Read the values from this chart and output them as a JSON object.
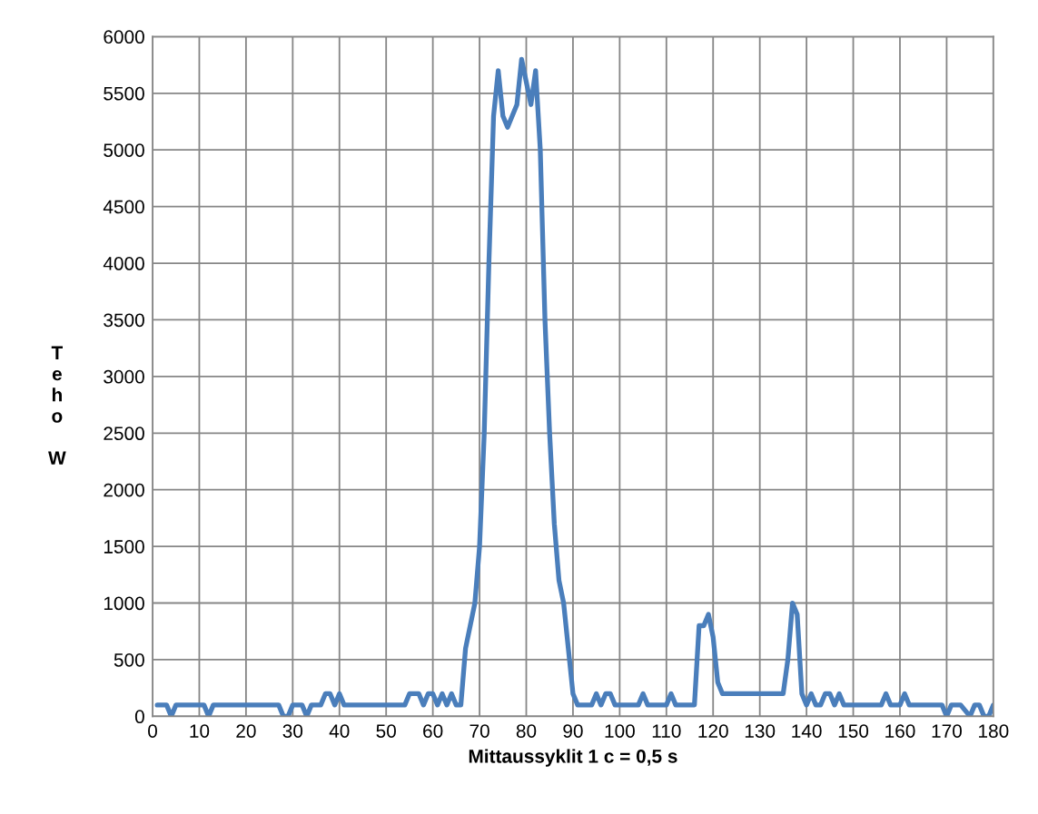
{
  "chart_data": {
    "type": "line",
    "xlabel": "Mittaussyklit 1 c = 0,5 s",
    "ylabel": "Teho W",
    "series": [
      {
        "color": "#4a7ebb",
        "x": [
          1,
          2,
          3,
          4,
          5,
          6,
          11,
          12,
          13,
          14,
          27,
          28,
          29,
          30,
          31,
          32,
          33,
          34,
          35,
          36,
          37,
          38,
          39,
          40,
          41,
          42,
          54,
          55,
          56,
          57,
          58,
          59,
          60,
          61,
          62,
          63,
          64,
          65,
          66,
          67,
          68,
          69,
          70,
          71,
          72,
          73,
          74,
          75,
          76,
          77,
          78,
          79,
          80,
          81,
          82,
          83,
          84,
          85,
          86,
          87,
          88,
          89,
          90,
          91,
          92,
          93,
          94,
          95,
          96,
          97,
          98,
          99,
          100,
          104,
          105,
          106,
          110,
          111,
          112,
          116,
          117,
          118,
          119,
          120,
          121,
          122,
          123,
          135,
          136,
          137,
          138,
          139,
          140,
          141,
          142,
          143,
          144,
          145,
          146,
          147,
          148,
          149,
          156,
          157,
          158,
          160,
          161,
          162,
          169,
          170,
          171,
          172,
          173,
          175,
          176,
          177,
          178,
          179,
          180
        ],
        "values": [
          100,
          100,
          100,
          0,
          100,
          100,
          100,
          0,
          100,
          100,
          100,
          0,
          0,
          100,
          100,
          100,
          0,
          100,
          100,
          100,
          200,
          200,
          100,
          200,
          100,
          100,
          100,
          200,
          200,
          200,
          100,
          200,
          200,
          100,
          200,
          100,
          200,
          100,
          100,
          600,
          800,
          1000,
          1500,
          2500,
          4000,
          5300,
          5700,
          5300,
          5200,
          5300,
          5400,
          5800,
          5600,
          5400,
          5700,
          5000,
          3500,
          2500,
          1700,
          1200,
          1000,
          600,
          200,
          100,
          100,
          100,
          100,
          200,
          100,
          200,
          200,
          100,
          100,
          100,
          200,
          100,
          100,
          200,
          100,
          100,
          800,
          800,
          900,
          700,
          300,
          200,
          200,
          200,
          500,
          1000,
          900,
          200,
          100,
          200,
          100,
          100,
          200,
          200,
          100,
          200,
          100,
          100,
          100,
          200,
          100,
          100,
          200,
          100,
          100,
          0,
          100,
          100,
          100,
          0,
          100,
          100,
          0,
          0,
          100
        ]
      }
    ],
    "xlim": [
      0,
      180
    ],
    "xticks": [
      0,
      10,
      20,
      30,
      40,
      50,
      60,
      70,
      80,
      90,
      100,
      110,
      120,
      130,
      140,
      150,
      160,
      170,
      180
    ],
    "ylim": [
      0,
      6000
    ],
    "yticks": [
      0,
      500,
      1000,
      1500,
      2000,
      2500,
      3000,
      3500,
      4000,
      4500,
      5000,
      5500,
      6000
    ],
    "grid": true,
    "legend": false,
    "marker": "none",
    "line_style": "solid"
  }
}
